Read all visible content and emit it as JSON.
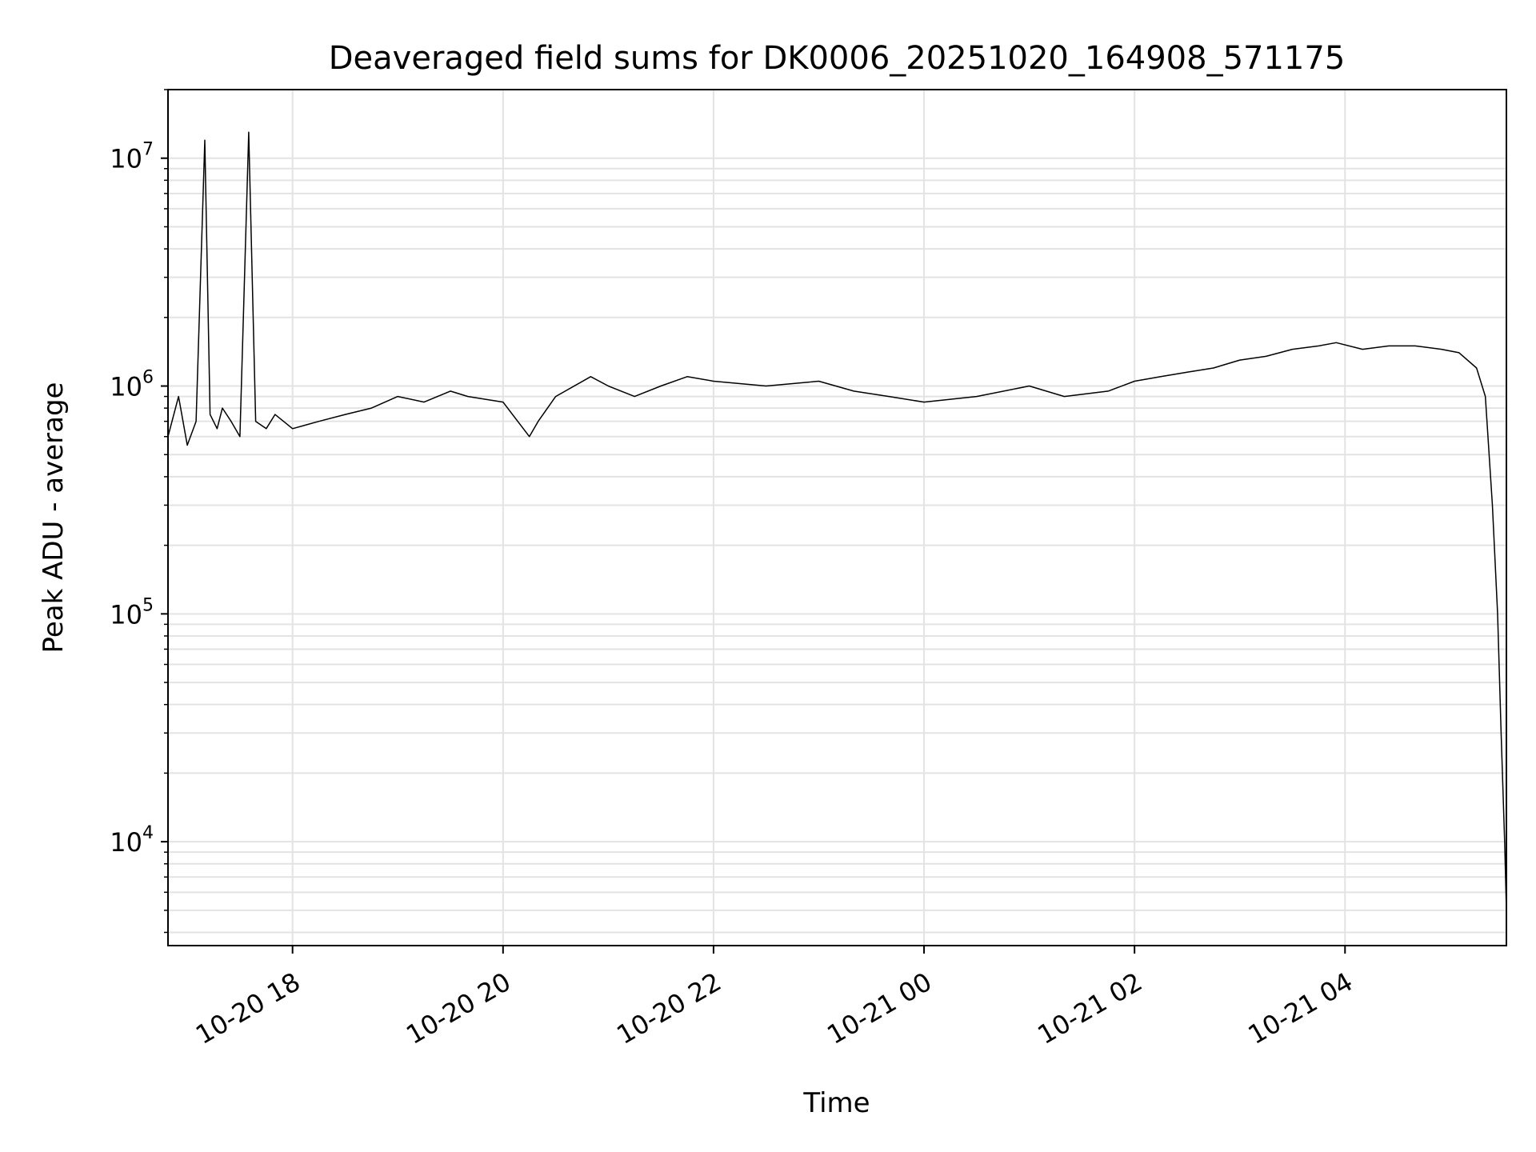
{
  "chart_data": {
    "type": "line",
    "title": "Deaveraged field sums for DK0006_20251020_164908_571175",
    "xlabel": "Time",
    "ylabel": "Peak ADU - average",
    "yscale": "log",
    "ylim": [
      3500,
      20000000
    ],
    "xlim": [
      "2025-10-20 16:49",
      "2025-10-21 05:32"
    ],
    "x_ticks": [
      {
        "t": "2025-10-20 18:00",
        "label": "10-20 18"
      },
      {
        "t": "2025-10-20 20:00",
        "label": "10-20 20"
      },
      {
        "t": "2025-10-20 22:00",
        "label": "10-20 22"
      },
      {
        "t": "2025-10-21 00:00",
        "label": "10-21 00"
      },
      {
        "t": "2025-10-21 02:00",
        "label": "10-21 02"
      },
      {
        "t": "2025-10-21 04:00",
        "label": "10-21 04"
      }
    ],
    "y_ticks": [
      {
        "value": 10000,
        "base": "10",
        "exp": "4"
      },
      {
        "value": 100000,
        "base": "10",
        "exp": "5"
      },
      {
        "value": 1000000,
        "base": "10",
        "exp": "6"
      },
      {
        "value": 10000000,
        "base": "10",
        "exp": "7"
      }
    ],
    "grid": true,
    "line_color": "#000000",
    "grid_color": "#e3e3e3",
    "series": [
      {
        "x": [
          "2025-10-20 16:49",
          "2025-10-20 16:55",
          "2025-10-20 17:00",
          "2025-10-20 17:05",
          "2025-10-20 17:10",
          "2025-10-20 17:13",
          "2025-10-20 17:17",
          "2025-10-20 17:20",
          "2025-10-20 17:25",
          "2025-10-20 17:30",
          "2025-10-20 17:35",
          "2025-10-20 17:39",
          "2025-10-20 17:45",
          "2025-10-20 17:50",
          "2025-10-20 18:00",
          "2025-10-20 18:15",
          "2025-10-20 18:30",
          "2025-10-20 18:45",
          "2025-10-20 19:00",
          "2025-10-20 19:15",
          "2025-10-20 19:30",
          "2025-10-20 19:40",
          "2025-10-20 20:00",
          "2025-10-20 20:15",
          "2025-10-20 20:20",
          "2025-10-20 20:30",
          "2025-10-20 20:50",
          "2025-10-20 21:00",
          "2025-10-20 21:15",
          "2025-10-20 21:30",
          "2025-10-20 21:45",
          "2025-10-20 22:00",
          "2025-10-20 22:30",
          "2025-10-20 23:00",
          "2025-10-20 23:20",
          "2025-10-20 23:40",
          "2025-10-21 00:00",
          "2025-10-21 00:30",
          "2025-10-21 01:00",
          "2025-10-21 01:20",
          "2025-10-21 01:45",
          "2025-10-21 02:00",
          "2025-10-21 02:15",
          "2025-10-21 02:30",
          "2025-10-21 02:45",
          "2025-10-21 03:00",
          "2025-10-21 03:15",
          "2025-10-21 03:30",
          "2025-10-21 03:45",
          "2025-10-21 03:55",
          "2025-10-21 04:10",
          "2025-10-21 04:25",
          "2025-10-21 04:40",
          "2025-10-21 04:55",
          "2025-10-21 05:05",
          "2025-10-21 05:15",
          "2025-10-21 05:20",
          "2025-10-21 05:24",
          "2025-10-21 05:27",
          "2025-10-21 05:29",
          "2025-10-21 05:31",
          "2025-10-21 05:32"
        ],
        "y": [
          600000,
          900000,
          550000,
          700000,
          12000000,
          750000,
          650000,
          800000,
          700000,
          600000,
          13000000,
          700000,
          650000,
          750000,
          650000,
          700000,
          750000,
          800000,
          900000,
          850000,
          950000,
          900000,
          850000,
          600000,
          700000,
          900000,
          1100000,
          1000000,
          900000,
          1000000,
          1100000,
          1050000,
          1000000,
          1050000,
          950000,
          900000,
          850000,
          900000,
          1000000,
          900000,
          950000,
          1050000,
          1100000,
          1150000,
          1200000,
          1300000,
          1350000,
          1450000,
          1500000,
          1550000,
          1450000,
          1500000,
          1500000,
          1450000,
          1400000,
          1200000,
          900000,
          300000,
          100000,
          30000,
          10000,
          5000
        ]
      }
    ]
  }
}
